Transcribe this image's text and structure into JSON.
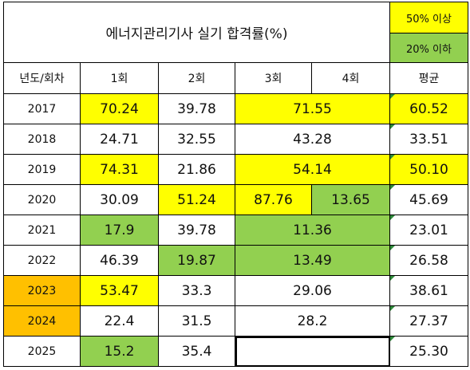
{
  "colors": {
    "yellow": "#ffff00",
    "green": "#92d050",
    "orange": "#ffc000",
    "border": "#000000",
    "corner_marker": "#2e8b3a"
  },
  "title": "에너지관리기사 실기 합격률(%)",
  "legend": {
    "above_50": "50% 이상",
    "below_20": "20% 이하"
  },
  "headers": {
    "year_round": "년도/회차",
    "round1": "1회",
    "round2": "2회",
    "round3": "3회",
    "round4": "4회",
    "average": "평균"
  },
  "rows": [
    {
      "year": "2017",
      "r1": "70.24",
      "r2": "39.78",
      "r34": "71.55",
      "avg": "60.52"
    },
    {
      "year": "2018",
      "r1": "24.71",
      "r2": "32.55",
      "r34": "43.28",
      "avg": "33.51"
    },
    {
      "year": "2019",
      "r1": "74.31",
      "r2": "21.86",
      "r34": "54.14",
      "avg": "50.10"
    },
    {
      "year": "2020",
      "r1": "30.09",
      "r2": "51.24",
      "r3": "87.76",
      "r4": "13.65",
      "avg": "45.69"
    },
    {
      "year": "2021",
      "r1": "17.9",
      "r2": "39.78",
      "r34": "11.36",
      "avg": "23.01"
    },
    {
      "year": "2022",
      "r1": "46.39",
      "r2": "19.87",
      "r34": "13.49",
      "avg": "26.58"
    },
    {
      "year": "2023",
      "r1": "53.47",
      "r2": "33.3",
      "r34": "29.06",
      "avg": "38.61"
    },
    {
      "year": "2024",
      "r1": "22.4",
      "r2": "31.5",
      "r34": "28.2",
      "avg": "27.37"
    },
    {
      "year": "2025",
      "r1": "15.2",
      "r2": "35.4",
      "r34": "",
      "avg": "25.30"
    }
  ]
}
